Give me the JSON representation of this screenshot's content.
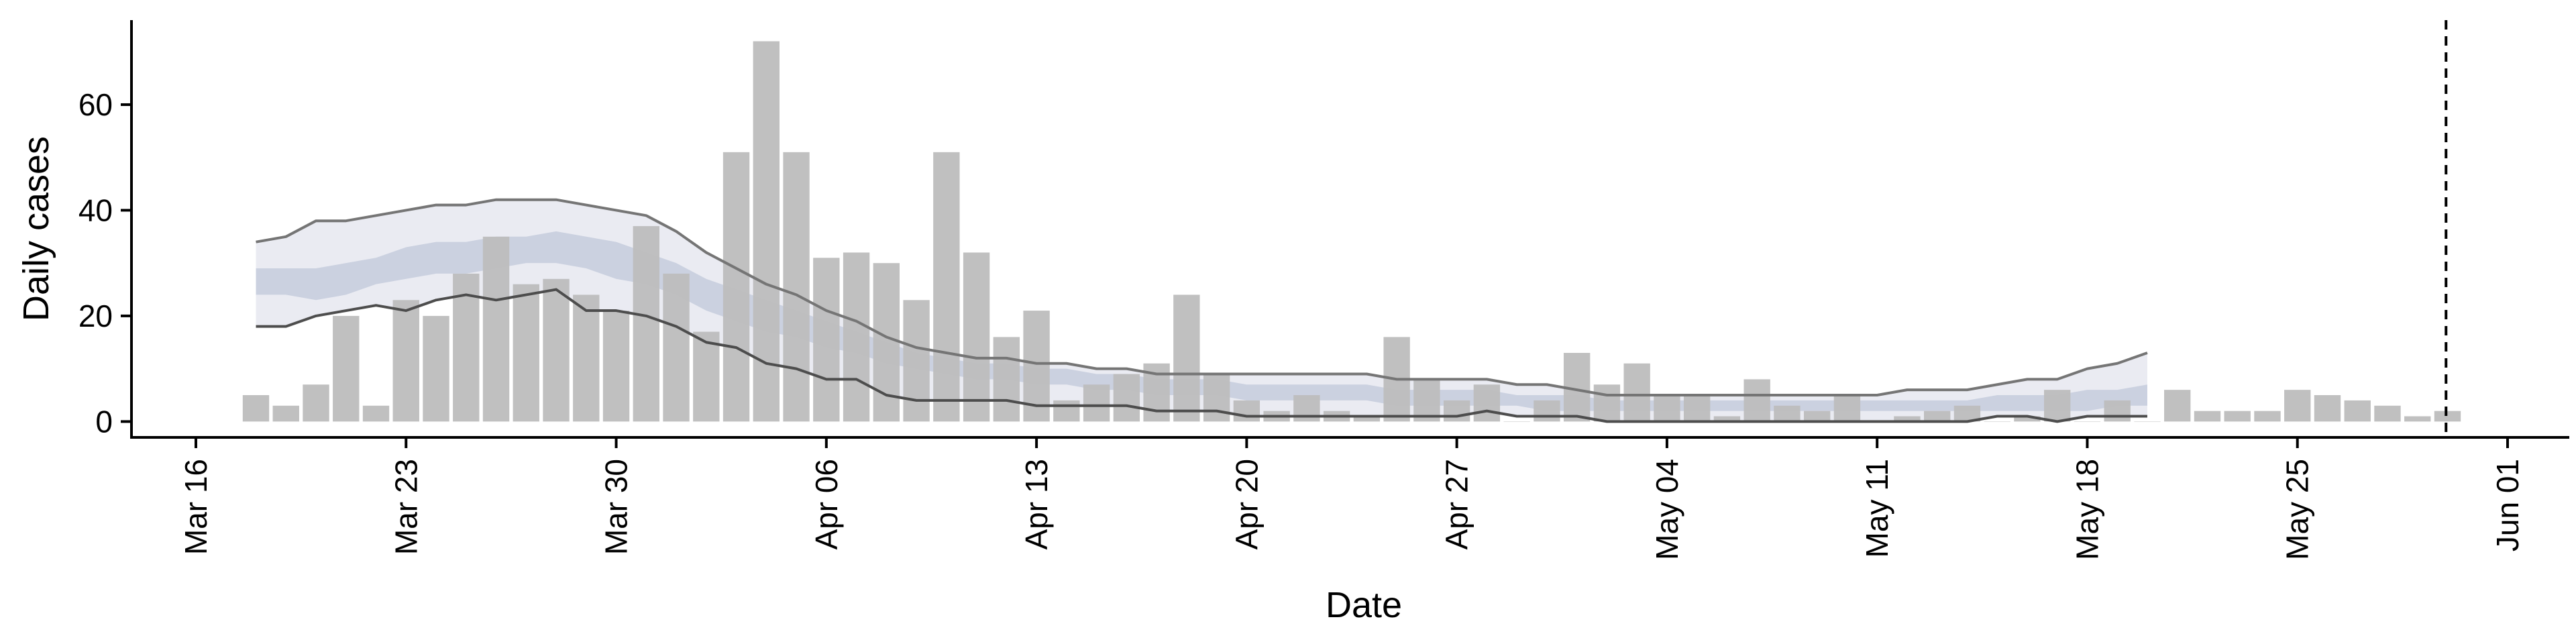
{
  "chart_data": {
    "type": "bar",
    "xlabel": "Date",
    "ylabel": "Daily cases",
    "ylim": [
      -3,
      76
    ],
    "yticks": [
      0,
      20,
      40,
      60
    ],
    "x_range": [
      "2020-03-16",
      "2020-06-01"
    ],
    "x_tick_dates": [
      "2020-03-16",
      "2020-03-23",
      "2020-03-30",
      "2020-04-06",
      "2020-04-13",
      "2020-04-20",
      "2020-04-27",
      "2020-05-04",
      "2020-05-11",
      "2020-05-18",
      "2020-05-25",
      "2020-06-01"
    ],
    "x_tick_labels": [
      "Mar 16",
      "Mar 23",
      "Mar 30",
      "Apr 06",
      "Apr 13",
      "Apr 20",
      "Apr 27",
      "May 04",
      "May 11",
      "May 18",
      "May 25",
      "Jun 01"
    ],
    "grid": false,
    "cutoff_date": "2020-05-30",
    "series": [
      {
        "kind": "bar",
        "color": "#bdbdbd",
        "points": [
          [
            "2020-03-18",
            5
          ],
          [
            "2020-03-19",
            3
          ],
          [
            "2020-03-20",
            7
          ],
          [
            "2020-03-21",
            20
          ],
          [
            "2020-03-22",
            3
          ],
          [
            "2020-03-23",
            23
          ],
          [
            "2020-03-24",
            20
          ],
          [
            "2020-03-25",
            28
          ],
          [
            "2020-03-26",
            35
          ],
          [
            "2020-03-27",
            26
          ],
          [
            "2020-03-28",
            27
          ],
          [
            "2020-03-29",
            24
          ],
          [
            "2020-03-30",
            21
          ],
          [
            "2020-03-31",
            37
          ],
          [
            "2020-04-01",
            28
          ],
          [
            "2020-04-02",
            17
          ],
          [
            "2020-04-03",
            51
          ],
          [
            "2020-04-04",
            72
          ],
          [
            "2020-04-05",
            51
          ],
          [
            "2020-04-06",
            31
          ],
          [
            "2020-04-07",
            32
          ],
          [
            "2020-04-08",
            30
          ],
          [
            "2020-04-09",
            23
          ],
          [
            "2020-04-10",
            51
          ],
          [
            "2020-04-11",
            32
          ],
          [
            "2020-04-12",
            16
          ],
          [
            "2020-04-13",
            21
          ],
          [
            "2020-04-14",
            4
          ],
          [
            "2020-04-15",
            7
          ],
          [
            "2020-04-16",
            9
          ],
          [
            "2020-04-17",
            11
          ],
          [
            "2020-04-18",
            24
          ],
          [
            "2020-04-19",
            9
          ],
          [
            "2020-04-20",
            4
          ],
          [
            "2020-04-21",
            2
          ],
          [
            "2020-04-22",
            5
          ],
          [
            "2020-04-23",
            2
          ],
          [
            "2020-04-24",
            1
          ],
          [
            "2020-04-25",
            16
          ],
          [
            "2020-04-26",
            8
          ],
          [
            "2020-04-27",
            4
          ],
          [
            "2020-04-28",
            7
          ],
          [
            "2020-04-29",
            0
          ],
          [
            "2020-04-30",
            4
          ],
          [
            "2020-05-01",
            13
          ],
          [
            "2020-05-02",
            7
          ],
          [
            "2020-05-03",
            11
          ],
          [
            "2020-05-04",
            5
          ],
          [
            "2020-05-05",
            5
          ],
          [
            "2020-05-06",
            1
          ],
          [
            "2020-05-07",
            8
          ],
          [
            "2020-05-08",
            3
          ],
          [
            "2020-05-09",
            2
          ],
          [
            "2020-05-10",
            5
          ],
          [
            "2020-05-11",
            0
          ],
          [
            "2020-05-12",
            1
          ],
          [
            "2020-05-13",
            2
          ],
          [
            "2020-05-14",
            3
          ],
          [
            "2020-05-15",
            0
          ],
          [
            "2020-05-16",
            1
          ],
          [
            "2020-05-17",
            6
          ],
          [
            "2020-05-18",
            0
          ],
          [
            "2020-05-19",
            4
          ],
          [
            "2020-05-20",
            0
          ],
          [
            "2020-05-21",
            6
          ],
          [
            "2020-05-22",
            2
          ],
          [
            "2020-05-23",
            2
          ],
          [
            "2020-05-24",
            2
          ],
          [
            "2020-05-25",
            6
          ],
          [
            "2020-05-26",
            5
          ],
          [
            "2020-05-27",
            4
          ],
          [
            "2020-05-28",
            3
          ],
          [
            "2020-05-29",
            1
          ],
          [
            "2020-05-30",
            2
          ]
        ]
      },
      {
        "kind": "band",
        "color": "#e6e8f0",
        "dates": [
          "2020-03-18",
          "2020-03-19",
          "2020-03-20",
          "2020-03-21",
          "2020-03-22",
          "2020-03-23",
          "2020-03-24",
          "2020-03-25",
          "2020-03-26",
          "2020-03-27",
          "2020-03-28",
          "2020-03-29",
          "2020-03-30",
          "2020-03-31",
          "2020-04-01",
          "2020-04-02",
          "2020-04-03",
          "2020-04-04",
          "2020-04-05",
          "2020-04-06",
          "2020-04-07",
          "2020-04-08",
          "2020-04-09",
          "2020-04-10",
          "2020-04-11",
          "2020-04-12",
          "2020-04-13",
          "2020-04-14",
          "2020-04-15",
          "2020-04-16",
          "2020-04-17",
          "2020-04-18",
          "2020-04-19",
          "2020-04-20",
          "2020-04-21",
          "2020-04-22",
          "2020-04-23",
          "2020-04-24",
          "2020-04-25",
          "2020-04-26",
          "2020-04-27",
          "2020-04-28",
          "2020-04-29",
          "2020-04-30",
          "2020-05-01",
          "2020-05-02",
          "2020-05-03",
          "2020-05-04",
          "2020-05-05",
          "2020-05-06",
          "2020-05-07",
          "2020-05-08",
          "2020-05-09",
          "2020-05-10",
          "2020-05-11",
          "2020-05-12",
          "2020-05-13",
          "2020-05-14",
          "2020-05-15",
          "2020-05-16",
          "2020-05-17",
          "2020-05-18",
          "2020-05-19",
          "2020-05-20"
        ],
        "low": [
          18,
          18,
          20,
          21,
          22,
          21,
          23,
          24,
          23,
          24,
          25,
          21,
          21,
          20,
          18,
          15,
          14,
          11,
          10,
          8,
          8,
          5,
          4,
          4,
          4,
          4,
          3,
          3,
          3,
          3,
          2,
          2,
          2,
          1,
          1,
          1,
          1,
          1,
          1,
          1,
          1,
          2,
          1,
          1,
          1,
          0,
          0,
          0,
          0,
          0,
          0,
          0,
          0,
          0,
          0,
          0,
          0,
          0,
          1,
          1,
          0,
          1,
          1,
          1
        ],
        "high": [
          34,
          35,
          38,
          38,
          39,
          40,
          41,
          41,
          42,
          42,
          42,
          41,
          40,
          39,
          36,
          32,
          29,
          26,
          24,
          21,
          19,
          16,
          14,
          13,
          12,
          12,
          11,
          11,
          10,
          10,
          9,
          9,
          9,
          9,
          9,
          9,
          9,
          9,
          8,
          8,
          8,
          8,
          7,
          7,
          6,
          5,
          5,
          5,
          5,
          5,
          5,
          5,
          5,
          5,
          5,
          6,
          6,
          6,
          7,
          8,
          8,
          10,
          11,
          13
        ]
      },
      {
        "kind": "band",
        "color": "#c5ccdd",
        "dates": [
          "2020-03-18",
          "2020-03-19",
          "2020-03-20",
          "2020-03-21",
          "2020-03-22",
          "2020-03-23",
          "2020-03-24",
          "2020-03-25",
          "2020-03-26",
          "2020-03-27",
          "2020-03-28",
          "2020-03-29",
          "2020-03-30",
          "2020-03-31",
          "2020-04-01",
          "2020-04-02",
          "2020-04-03",
          "2020-04-04",
          "2020-04-05",
          "2020-04-06",
          "2020-04-07",
          "2020-04-08",
          "2020-04-09",
          "2020-04-10",
          "2020-04-11",
          "2020-04-12",
          "2020-04-13",
          "2020-04-14",
          "2020-04-15",
          "2020-04-16",
          "2020-04-17",
          "2020-04-18",
          "2020-04-19",
          "2020-04-20",
          "2020-04-21",
          "2020-04-22",
          "2020-04-23",
          "2020-04-24",
          "2020-04-25",
          "2020-04-26",
          "2020-04-27",
          "2020-04-28",
          "2020-04-29",
          "2020-04-30",
          "2020-05-01",
          "2020-05-02",
          "2020-05-03",
          "2020-05-04",
          "2020-05-05",
          "2020-05-06",
          "2020-05-07",
          "2020-05-08",
          "2020-05-09",
          "2020-05-10",
          "2020-05-11",
          "2020-05-12",
          "2020-05-13",
          "2020-05-14",
          "2020-05-15",
          "2020-05-16",
          "2020-05-17",
          "2020-05-18",
          "2020-05-19",
          "2020-05-20"
        ],
        "low": [
          24,
          24,
          23,
          24,
          26,
          27,
          28,
          28,
          29,
          30,
          30,
          29,
          27,
          26,
          24,
          21,
          19,
          17,
          16,
          14,
          13,
          11,
          10,
          9,
          8,
          8,
          7,
          7,
          6,
          6,
          5,
          5,
          5,
          4,
          4,
          4,
          4,
          4,
          3,
          3,
          3,
          3,
          3,
          2,
          2,
          2,
          2,
          2,
          2,
          2,
          2,
          2,
          2,
          2,
          2,
          2,
          2,
          2,
          2,
          2,
          2,
          2,
          3,
          3
        ],
        "high": [
          29,
          29,
          29,
          30,
          31,
          33,
          34,
          34,
          35,
          35,
          36,
          35,
          34,
          32,
          30,
          27,
          25,
          23,
          21,
          19,
          17,
          15,
          13,
          12,
          11,
          11,
          10,
          10,
          9,
          9,
          8,
          8,
          8,
          7,
          7,
          7,
          7,
          7,
          6,
          6,
          6,
          6,
          5,
          5,
          5,
          4,
          4,
          4,
          4,
          4,
          4,
          4,
          4,
          4,
          4,
          4,
          4,
          4,
          5,
          5,
          5,
          6,
          6,
          7
        ]
      },
      {
        "kind": "line",
        "color": "#757575",
        "dates": [
          "2020-03-18",
          "2020-03-19",
          "2020-03-20",
          "2020-03-21",
          "2020-03-22",
          "2020-03-23",
          "2020-03-24",
          "2020-03-25",
          "2020-03-26",
          "2020-03-27",
          "2020-03-28",
          "2020-03-29",
          "2020-03-30",
          "2020-03-31",
          "2020-04-01",
          "2020-04-02",
          "2020-04-03",
          "2020-04-04",
          "2020-04-05",
          "2020-04-06",
          "2020-04-07",
          "2020-04-08",
          "2020-04-09",
          "2020-04-10",
          "2020-04-11",
          "2020-04-12",
          "2020-04-13",
          "2020-04-14",
          "2020-04-15",
          "2020-04-16",
          "2020-04-17",
          "2020-04-18",
          "2020-04-19",
          "2020-04-20",
          "2020-04-21",
          "2020-04-22",
          "2020-04-23",
          "2020-04-24",
          "2020-04-25",
          "2020-04-26",
          "2020-04-27",
          "2020-04-28",
          "2020-04-29",
          "2020-04-30",
          "2020-05-01",
          "2020-05-02",
          "2020-05-03",
          "2020-05-04",
          "2020-05-05",
          "2020-05-06",
          "2020-05-07",
          "2020-05-08",
          "2020-05-09",
          "2020-05-10",
          "2020-05-11",
          "2020-05-12",
          "2020-05-13",
          "2020-05-14",
          "2020-05-15",
          "2020-05-16",
          "2020-05-17",
          "2020-05-18",
          "2020-05-19",
          "2020-05-20"
        ],
        "values": [
          34,
          35,
          38,
          38,
          39,
          40,
          41,
          41,
          42,
          42,
          42,
          41,
          40,
          39,
          36,
          32,
          29,
          26,
          24,
          21,
          19,
          16,
          14,
          13,
          12,
          12,
          11,
          11,
          10,
          10,
          9,
          9,
          9,
          9,
          9,
          9,
          9,
          9,
          8,
          8,
          8,
          8,
          7,
          7,
          6,
          5,
          5,
          5,
          5,
          5,
          5,
          5,
          5,
          5,
          5,
          6,
          6,
          6,
          7,
          8,
          8,
          10,
          11,
          13
        ]
      },
      {
        "kind": "line",
        "color": "#4d4d4d",
        "dates": [
          "2020-03-18",
          "2020-03-19",
          "2020-03-20",
          "2020-03-21",
          "2020-03-22",
          "2020-03-23",
          "2020-03-24",
          "2020-03-25",
          "2020-03-26",
          "2020-03-27",
          "2020-03-28",
          "2020-03-29",
          "2020-03-30",
          "2020-03-31",
          "2020-04-01",
          "2020-04-02",
          "2020-04-03",
          "2020-04-04",
          "2020-04-05",
          "2020-04-06",
          "2020-04-07",
          "2020-04-08",
          "2020-04-09",
          "2020-04-10",
          "2020-04-11",
          "2020-04-12",
          "2020-04-13",
          "2020-04-14",
          "2020-04-15",
          "2020-04-16",
          "2020-04-17",
          "2020-04-18",
          "2020-04-19",
          "2020-04-20",
          "2020-04-21",
          "2020-04-22",
          "2020-04-23",
          "2020-04-24",
          "2020-04-25",
          "2020-04-26",
          "2020-04-27",
          "2020-04-28",
          "2020-04-29",
          "2020-04-30",
          "2020-05-01",
          "2020-05-02",
          "2020-05-03",
          "2020-05-04",
          "2020-05-05",
          "2020-05-06",
          "2020-05-07",
          "2020-05-08",
          "2020-05-09",
          "2020-05-10",
          "2020-05-11",
          "2020-05-12",
          "2020-05-13",
          "2020-05-14",
          "2020-05-15",
          "2020-05-16",
          "2020-05-17",
          "2020-05-18",
          "2020-05-19",
          "2020-05-20"
        ],
        "values": [
          18,
          18,
          20,
          21,
          22,
          21,
          23,
          24,
          23,
          24,
          25,
          21,
          21,
          20,
          18,
          15,
          14,
          11,
          10,
          8,
          8,
          5,
          4,
          4,
          4,
          4,
          3,
          3,
          3,
          3,
          2,
          2,
          2,
          1,
          1,
          1,
          1,
          1,
          1,
          1,
          1,
          2,
          1,
          1,
          1,
          0,
          0,
          0,
          0,
          0,
          0,
          0,
          0,
          0,
          0,
          0,
          0,
          0,
          1,
          1,
          0,
          1,
          1,
          1
        ]
      }
    ]
  }
}
